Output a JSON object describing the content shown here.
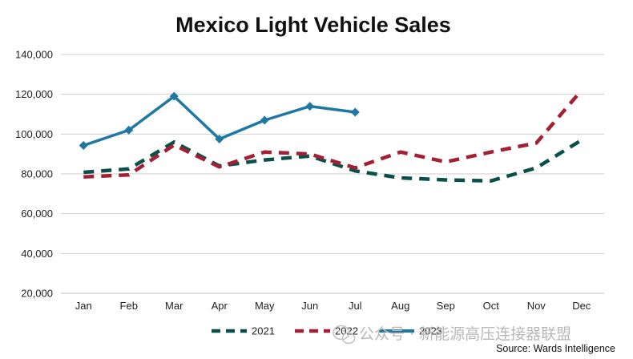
{
  "chart_data": {
    "type": "line",
    "title": "Mexico Light Vehicle Sales",
    "xlabel": "",
    "ylabel": "",
    "categories": [
      "Jan",
      "Feb",
      "Mar",
      "Apr",
      "May",
      "Jun",
      "Jul",
      "Aug",
      "Sep",
      "Oct",
      "Nov",
      "Dec"
    ],
    "ylim": [
      20000,
      140000
    ],
    "yticks": [
      20000,
      40000,
      60000,
      80000,
      100000,
      120000,
      140000
    ],
    "ytick_labels": [
      "20,000",
      "40,000",
      "60,000",
      "80,000",
      "100,000",
      "120,000",
      "140,000"
    ],
    "grid": true,
    "legend_position": "bottom",
    "series": [
      {
        "name": "2021",
        "color": "#0b4f4a",
        "style": "dashed",
        "values": [
          80800,
          82500,
          96000,
          84000,
          87000,
          89000,
          81500,
          78000,
          77000,
          76500,
          83000,
          97000
        ]
      },
      {
        "name": "2022",
        "color": "#a31f34",
        "style": "dashed",
        "values": [
          78500,
          79500,
          94500,
          83500,
          91000,
          90000,
          83000,
          91000,
          86000,
          91000,
          95500,
          122000
        ]
      },
      {
        "name": "2023",
        "color": "#1f77a4",
        "style": "solid-markers",
        "values": [
          94300,
          102000,
          119000,
          97500,
          107000,
          114000,
          111000,
          null,
          null,
          null,
          null,
          null
        ]
      }
    ],
    "source": "Source: Wards Intelligence"
  },
  "watermark": "公众号 · 新能源高压连接器联盟",
  "icons": {
    "watermark_logo": "wechat-icon"
  }
}
